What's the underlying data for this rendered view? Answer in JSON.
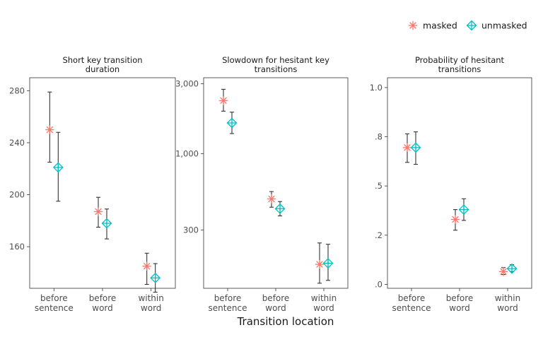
{
  "chart_data": {
    "type": "scatter",
    "xlabel": "Transition location",
    "categories": [
      [
        "before",
        "sentence"
      ],
      [
        "before",
        "word"
      ],
      [
        "within",
        "word"
      ]
    ],
    "legend": {
      "placement": "top-right",
      "entries": [
        {
          "name": "masked",
          "color": "#F8766D",
          "marker": "asterisk"
        },
        {
          "name": "unmasked",
          "color": "#00BFC4",
          "marker": "diamond-plus"
        }
      ]
    },
    "panels": [
      {
        "title": [
          "Short key transition",
          "duration"
        ],
        "scale": "linear",
        "ylim": [
          128,
          290
        ],
        "yticks": [
          {
            "value": 160,
            "label": "160"
          },
          {
            "value": 200,
            "label": "200"
          },
          {
            "value": 240,
            "label": "240"
          },
          {
            "value": 280,
            "label": "280"
          }
        ],
        "series": [
          {
            "name": "masked",
            "points": [
              {
                "y": 250,
                "low": 225,
                "high": 279
              },
              {
                "y": 187,
                "low": 175,
                "high": 198
              },
              {
                "y": 145,
                "low": 131,
                "high": 155
              }
            ]
          },
          {
            "name": "unmasked",
            "points": [
              {
                "y": 221,
                "low": 195,
                "high": 248
              },
              {
                "y": 178,
                "low": 166,
                "high": 189
              },
              {
                "y": 136,
                "low": 125,
                "high": 147
              }
            ]
          }
        ]
      },
      {
        "title": [
          "Slowdown for hesitant key",
          "transitions"
        ],
        "scale": "log",
        "ylim": [
          120,
          3300
        ],
        "yticks": [
          {
            "value": 300,
            "label": "300"
          },
          {
            "value": 1000,
            "label": "1,000"
          },
          {
            "value": 3000,
            "label": "3,000"
          }
        ],
        "series": [
          {
            "name": "masked",
            "points": [
              {
                "y": 2300,
                "low": 1950,
                "high": 2750
              },
              {
                "y": 490,
                "low": 430,
                "high": 550
              },
              {
                "y": 175,
                "low": 130,
                "high": 245
              }
            ]
          },
          {
            "name": "unmasked",
            "points": [
              {
                "y": 1620,
                "low": 1370,
                "high": 1920
              },
              {
                "y": 420,
                "low": 375,
                "high": 470
              },
              {
                "y": 178,
                "low": 136,
                "high": 240
              }
            ]
          }
        ]
      },
      {
        "title": [
          "Probability of hesitant",
          "transitions"
        ],
        "scale": "linear",
        "ylim": [
          -0.02,
          1.05
        ],
        "yticks": [
          {
            "value": 0,
            "label": ".0"
          },
          {
            "value": 0.25,
            "label": ".2"
          },
          {
            "value": 0.5,
            "label": ".5"
          },
          {
            "value": 0.75,
            "label": ".8"
          },
          {
            "value": 1.0,
            "label": "1.0"
          }
        ],
        "series": [
          {
            "name": "masked",
            "points": [
              {
                "y": 0.695,
                "low": 0.62,
                "high": 0.765
              },
              {
                "y": 0.33,
                "low": 0.275,
                "high": 0.38
              },
              {
                "y": 0.065,
                "low": 0.05,
                "high": 0.085
              }
            ]
          },
          {
            "name": "unmasked",
            "points": [
              {
                "y": 0.695,
                "low": 0.61,
                "high": 0.775
              },
              {
                "y": 0.38,
                "low": 0.325,
                "high": 0.435
              },
              {
                "y": 0.08,
                "low": 0.065,
                "high": 0.1
              }
            ]
          }
        ]
      }
    ]
  }
}
